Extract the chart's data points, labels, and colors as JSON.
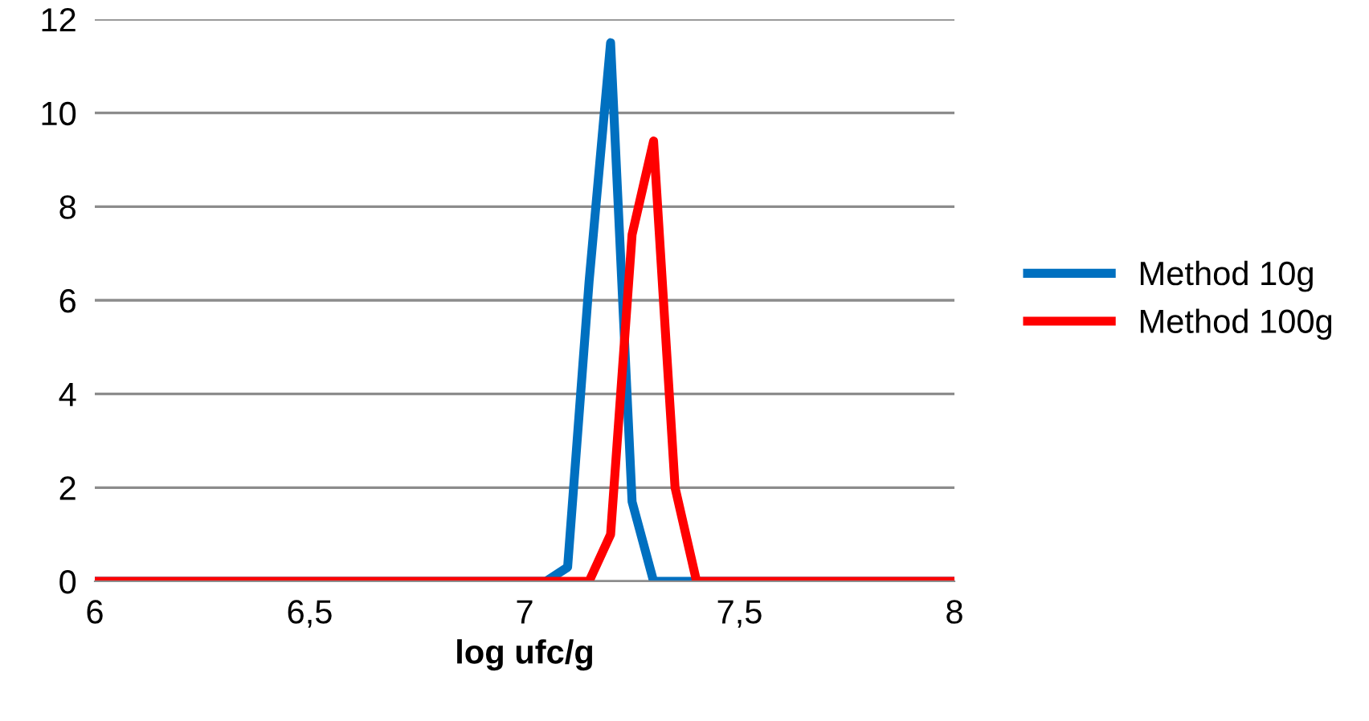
{
  "chart_data": {
    "type": "line",
    "xlabel": "log ufc/g",
    "series": [
      {
        "name": "Method 10g",
        "color": "#0070c0",
        "x": [
          6,
          7.05,
          7.1,
          7.15,
          7.2,
          7.25,
          7.3,
          8
        ],
        "values": [
          0,
          0,
          0.3,
          6.4,
          11.5,
          1.7,
          0,
          0
        ]
      },
      {
        "name": "Method 100g",
        "color": "#ff0000",
        "x": [
          6,
          7.15,
          7.2,
          7.25,
          7.3,
          7.35,
          7.4,
          8
        ],
        "values": [
          0,
          0,
          1.0,
          7.4,
          9.4,
          2.0,
          0,
          0
        ]
      }
    ],
    "xlim": [
      6,
      8
    ],
    "xticks": [
      {
        "value": 6,
        "label": "6"
      },
      {
        "value": 6.5,
        "label": "6,5"
      },
      {
        "value": 7,
        "label": "7"
      },
      {
        "value": 7.5,
        "label": "7,5"
      },
      {
        "value": 8,
        "label": "8"
      }
    ],
    "ylim": [
      0,
      12
    ],
    "yticks": [
      0,
      2,
      4,
      6,
      8,
      10,
      12
    ],
    "grid": "y",
    "legend": "right",
    "marker": "none",
    "line_style": "solid"
  }
}
